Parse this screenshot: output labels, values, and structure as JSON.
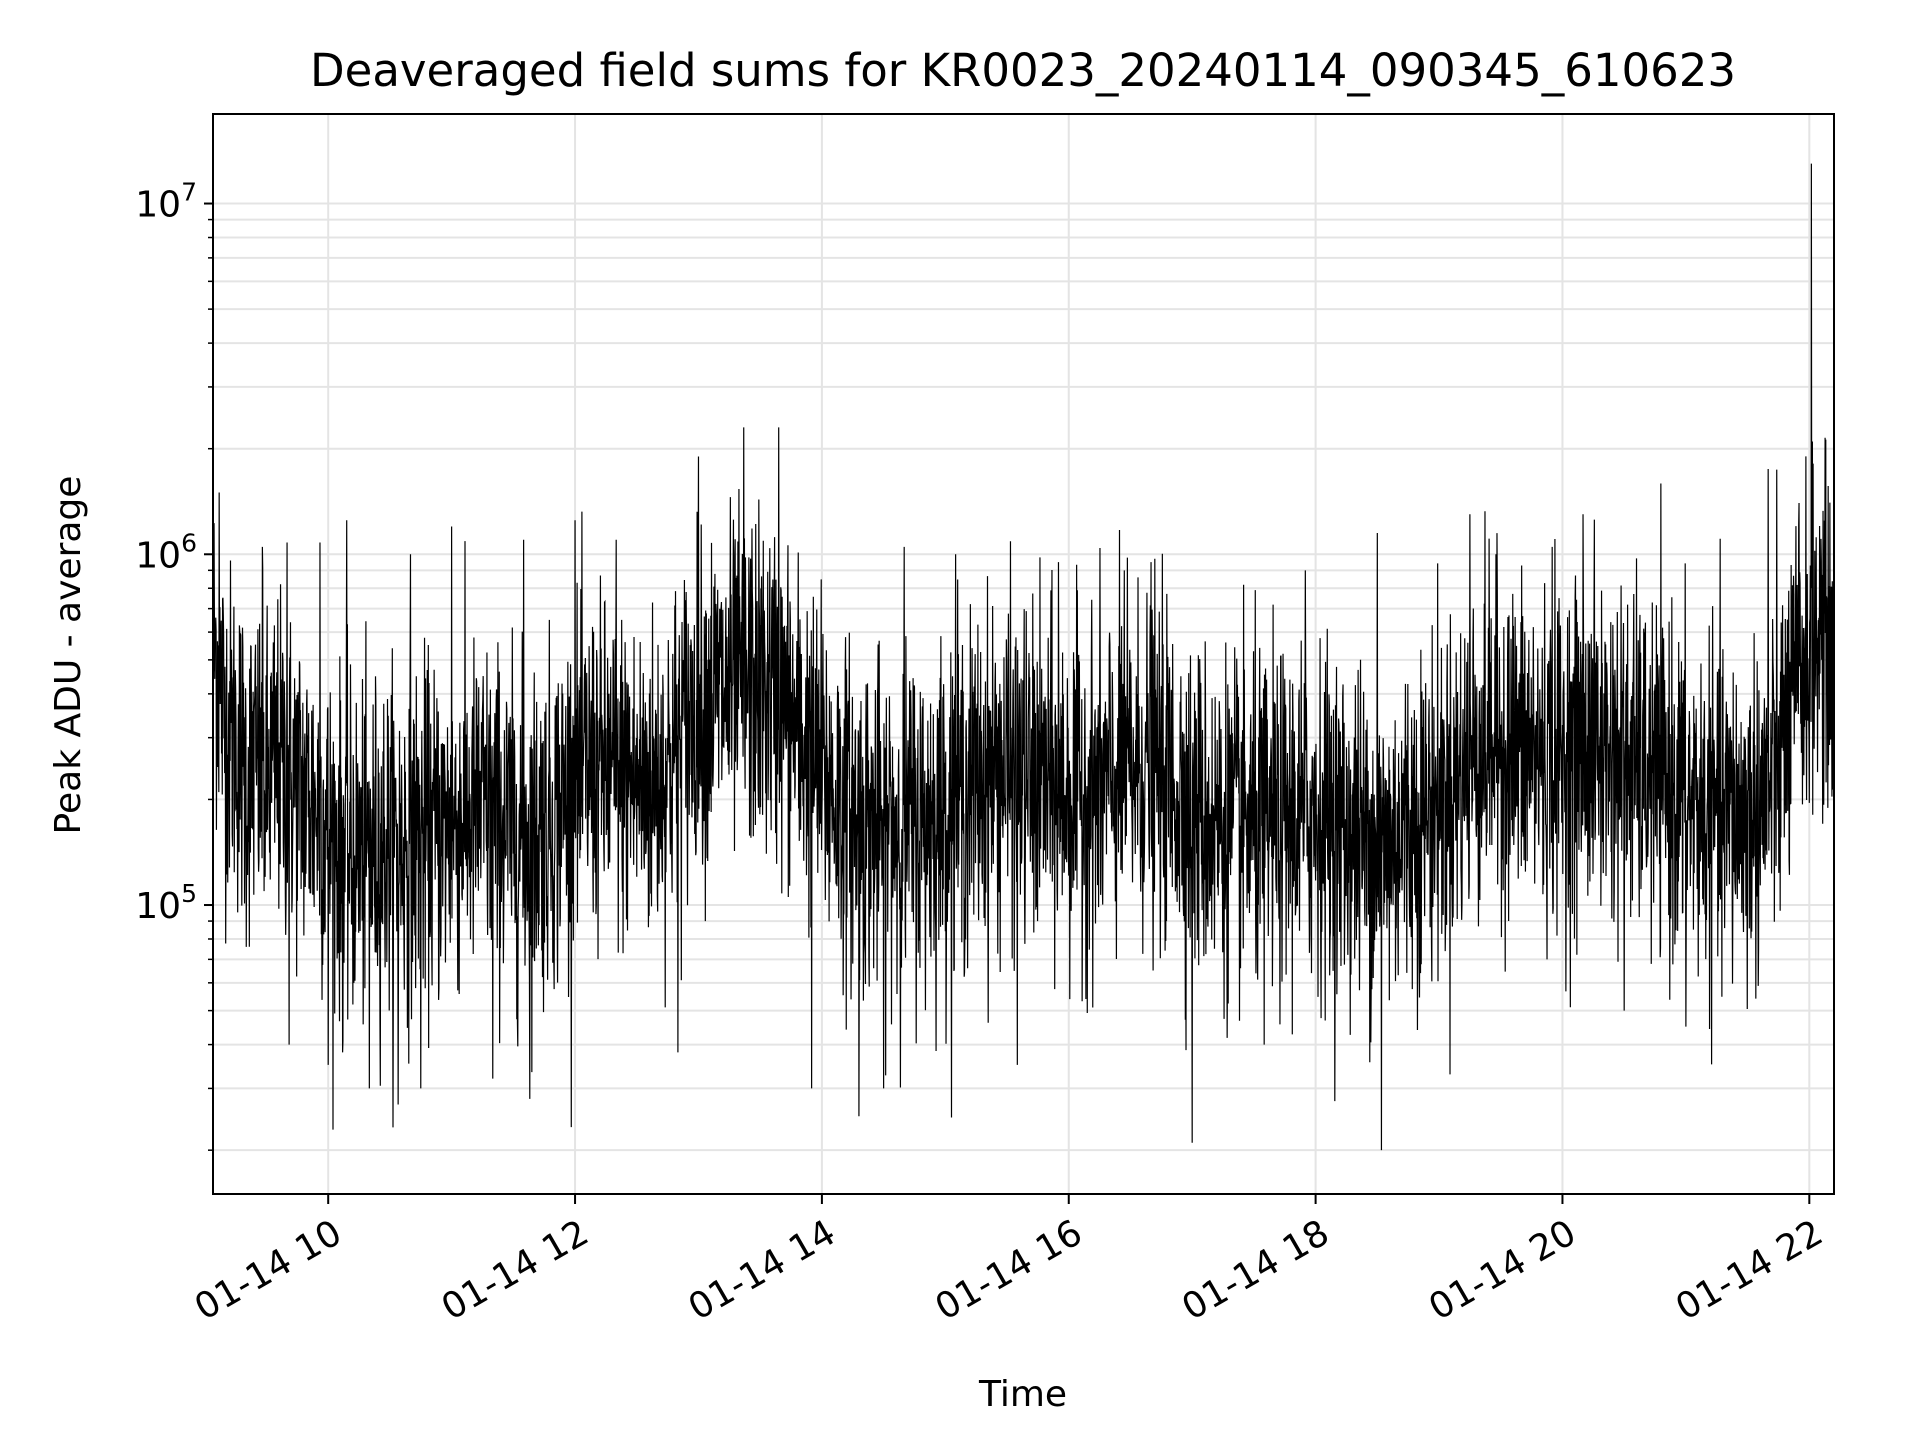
{
  "chart_data": {
    "type": "line",
    "title": "Deaveraged field sums for KR0023_20240114_090345_610623",
    "xlabel": "Time",
    "ylabel": "Peak ADU - average",
    "y_scale": "log",
    "ylim": [
      15000,
      18000000
    ],
    "xlim": [
      "2024-01-14 09:04",
      "2024-01-14 22:12"
    ],
    "grid": true,
    "grid_minor": true,
    "line_color": "#000000",
    "x_ticks": [
      {
        "value": "2024-01-14 10:00",
        "label": "01-14 10"
      },
      {
        "value": "2024-01-14 12:00",
        "label": "01-14 12"
      },
      {
        "value": "2024-01-14 14:00",
        "label": "01-14 14"
      },
      {
        "value": "2024-01-14 16:00",
        "label": "01-14 16"
      },
      {
        "value": "2024-01-14 18:00",
        "label": "01-14 18"
      },
      {
        "value": "2024-01-14 20:00",
        "label": "01-14 20"
      },
      {
        "value": "2024-01-14 22:00",
        "label": "01-14 22"
      }
    ],
    "y_ticks": [
      {
        "value": 100000,
        "base": "10",
        "exp": "5"
      },
      {
        "value": 1000000,
        "base": "10",
        "exp": "6"
      },
      {
        "value": 10000000,
        "base": "10",
        "exp": "7"
      }
    ],
    "series": [
      {
        "x_start": "2024-01-14 09:04",
        "x_end": "2024-01-14 22:12",
        "samples_per_point": 6,
        "points": [
          [
            "09:04",
            600000
          ],
          [
            "09:10",
            330000
          ],
          [
            "09:15",
            300000
          ],
          [
            "09:20",
            230000
          ],
          [
            "09:25",
            250000
          ],
          [
            "09:30",
            220000
          ],
          [
            "09:35",
            260000
          ],
          [
            "09:40",
            230000
          ],
          [
            "09:45",
            220000
          ],
          [
            "09:50",
            200000
          ],
          [
            "09:55",
            190000
          ],
          [
            "10:00",
            160000
          ],
          [
            "10:05",
            150000
          ],
          [
            "10:10",
            140000
          ],
          [
            "10:15",
            140000
          ],
          [
            "10:20",
            140000
          ],
          [
            "10:25",
            150000
          ],
          [
            "10:30",
            150000
          ],
          [
            "10:35",
            150000
          ],
          [
            "10:40",
            150000
          ],
          [
            "10:45",
            160000
          ],
          [
            "10:50",
            160000
          ],
          [
            "10:55",
            160000
          ],
          [
            "11:00",
            170000
          ],
          [
            "11:05",
            180000
          ],
          [
            "11:10",
            180000
          ],
          [
            "11:15",
            190000
          ],
          [
            "11:20",
            180000
          ],
          [
            "11:25",
            170000
          ],
          [
            "11:30",
            160000
          ],
          [
            "11:35",
            160000
          ],
          [
            "11:40",
            160000
          ],
          [
            "11:45",
            170000
          ],
          [
            "11:50",
            180000
          ],
          [
            "11:55",
            200000
          ],
          [
            "12:00",
            220000
          ],
          [
            "12:05",
            240000
          ],
          [
            "12:10",
            240000
          ],
          [
            "12:15",
            240000
          ],
          [
            "12:20",
            230000
          ],
          [
            "12:25",
            230000
          ],
          [
            "12:30",
            220000
          ],
          [
            "12:35",
            220000
          ],
          [
            "12:40",
            230000
          ],
          [
            "12:45",
            250000
          ],
          [
            "12:50",
            290000
          ],
          [
            "12:55",
            330000
          ],
          [
            "13:00",
            360000
          ],
          [
            "13:05",
            390000
          ],
          [
            "13:10",
            400000
          ],
          [
            "13:15",
            400000
          ],
          [
            "13:20",
            420000
          ],
          [
            "13:25",
            430000
          ],
          [
            "13:30",
            420000
          ],
          [
            "13:35",
            400000
          ],
          [
            "13:40",
            370000
          ],
          [
            "13:45",
            340000
          ],
          [
            "13:50",
            300000
          ],
          [
            "13:55",
            270000
          ],
          [
            "14:00",
            240000
          ],
          [
            "14:05",
            210000
          ],
          [
            "14:10",
            190000
          ],
          [
            "14:15",
            180000
          ],
          [
            "14:20",
            170000
          ],
          [
            "14:25",
            170000
          ],
          [
            "14:30",
            170000
          ],
          [
            "14:35",
            170000
          ],
          [
            "14:40",
            170000
          ],
          [
            "14:45",
            170000
          ],
          [
            "14:50",
            170000
          ],
          [
            "14:55",
            180000
          ],
          [
            "15:00",
            190000
          ],
          [
            "15:05",
            200000
          ],
          [
            "15:10",
            210000
          ],
          [
            "15:15",
            220000
          ],
          [
            "15:20",
            230000
          ],
          [
            "15:25",
            240000
          ],
          [
            "15:30",
            240000
          ],
          [
            "15:35",
            240000
          ],
          [
            "15:40",
            230000
          ],
          [
            "15:45",
            220000
          ],
          [
            "15:50",
            220000
          ],
          [
            "15:55",
            210000
          ],
          [
            "16:00",
            210000
          ],
          [
            "16:05",
            210000
          ],
          [
            "16:10",
            210000
          ],
          [
            "16:15",
            210000
          ],
          [
            "16:20",
            220000
          ],
          [
            "16:25",
            230000
          ],
          [
            "16:30",
            240000
          ],
          [
            "16:35",
            250000
          ],
          [
            "16:40",
            250000
          ],
          [
            "16:45",
            240000
          ],
          [
            "16:50",
            220000
          ],
          [
            "16:55",
            210000
          ],
          [
            "17:00",
            190000
          ],
          [
            "17:05",
            180000
          ],
          [
            "17:10",
            170000
          ],
          [
            "17:15",
            170000
          ],
          [
            "17:20",
            170000
          ],
          [
            "17:25",
            170000
          ],
          [
            "17:30",
            170000
          ],
          [
            "17:35",
            170000
          ],
          [
            "17:40",
            170000
          ],
          [
            "17:45",
            170000
          ],
          [
            "17:50",
            180000
          ],
          [
            "17:55",
            180000
          ],
          [
            "18:00",
            180000
          ],
          [
            "18:05",
            180000
          ],
          [
            "18:10",
            170000
          ],
          [
            "18:15",
            160000
          ],
          [
            "18:20",
            160000
          ],
          [
            "18:25",
            150000
          ],
          [
            "18:30",
            150000
          ],
          [
            "18:35",
            150000
          ],
          [
            "18:40",
            160000
          ],
          [
            "18:45",
            170000
          ],
          [
            "18:50",
            180000
          ],
          [
            "18:55",
            190000
          ],
          [
            "19:00",
            200000
          ],
          [
            "19:05",
            210000
          ],
          [
            "19:10",
            230000
          ],
          [
            "19:15",
            260000
          ],
          [
            "19:20",
            290000
          ],
          [
            "19:25",
            300000
          ],
          [
            "19:30",
            290000
          ],
          [
            "19:35",
            280000
          ],
          [
            "19:40",
            280000
          ],
          [
            "19:45",
            270000
          ],
          [
            "19:50",
            260000
          ],
          [
            "19:55",
            260000
          ],
          [
            "20:00",
            260000
          ],
          [
            "20:05",
            270000
          ],
          [
            "20:10",
            280000
          ],
          [
            "20:15",
            280000
          ],
          [
            "20:20",
            280000
          ],
          [
            "20:25",
            270000
          ],
          [
            "20:30",
            260000
          ],
          [
            "20:35",
            250000
          ],
          [
            "20:40",
            240000
          ],
          [
            "20:45",
            230000
          ],
          [
            "20:50",
            220000
          ],
          [
            "20:55",
            210000
          ],
          [
            "21:00",
            200000
          ],
          [
            "21:05",
            190000
          ],
          [
            "21:10",
            180000
          ],
          [
            "21:15",
            180000
          ],
          [
            "21:20",
            180000
          ],
          [
            "21:25",
            180000
          ],
          [
            "21:30",
            180000
          ],
          [
            "21:35",
            190000
          ],
          [
            "21:40",
            210000
          ],
          [
            "21:45",
            250000
          ],
          [
            "21:50",
            330000
          ],
          [
            "21:55",
            450000
          ],
          [
            "22:00",
            550000
          ],
          [
            "22:05",
            600000
          ],
          [
            "22:10",
            550000
          ],
          [
            "22:12",
            400000
          ]
        ],
        "extremes": [
          [
            "09:07",
            1500000
          ],
          [
            "09:28",
            1050000
          ],
          [
            "09:40",
            1080000
          ],
          [
            "09:41",
            40000
          ],
          [
            "09:56",
            1080000
          ],
          [
            "10:00",
            35000
          ],
          [
            "10:09",
            1250000
          ],
          [
            "10:07",
            38000
          ],
          [
            "10:20",
            30000
          ],
          [
            "10:34",
            27000
          ],
          [
            "10:40",
            1000000
          ],
          [
            "10:45",
            30000
          ],
          [
            "11:00",
            1200000
          ],
          [
            "11:20",
            32000
          ],
          [
            "11:35",
            1100000
          ],
          [
            "11:38",
            28000
          ],
          [
            "12:00",
            1250000
          ],
          [
            "12:20",
            1100000
          ],
          [
            "12:50",
            38000
          ],
          [
            "13:00",
            1900000
          ],
          [
            "13:22",
            2300000
          ],
          [
            "13:39",
            2300000
          ],
          [
            "13:55",
            30000
          ],
          [
            "14:18",
            25000
          ],
          [
            "14:30",
            30000
          ],
          [
            "14:40",
            1050000
          ],
          [
            "15:05",
            1000000
          ],
          [
            "15:35",
            35000
          ],
          [
            "15:55",
            950000
          ],
          [
            "16:27",
            900000
          ],
          [
            "16:40",
            950000
          ],
          [
            "17:00",
            21000
          ],
          [
            "17:35",
            40000
          ],
          [
            "17:55",
            900000
          ],
          [
            "18:30",
            1150000
          ],
          [
            "18:32",
            20000
          ],
          [
            "19:15",
            1300000
          ],
          [
            "19:55",
            1050000
          ],
          [
            "20:10",
            1300000
          ],
          [
            "20:30",
            50000
          ],
          [
            "21:00",
            45000
          ],
          [
            "21:40",
            1750000
          ],
          [
            "21:55",
            1400000
          ],
          [
            "22:01",
            13000000
          ]
        ]
      }
    ]
  }
}
